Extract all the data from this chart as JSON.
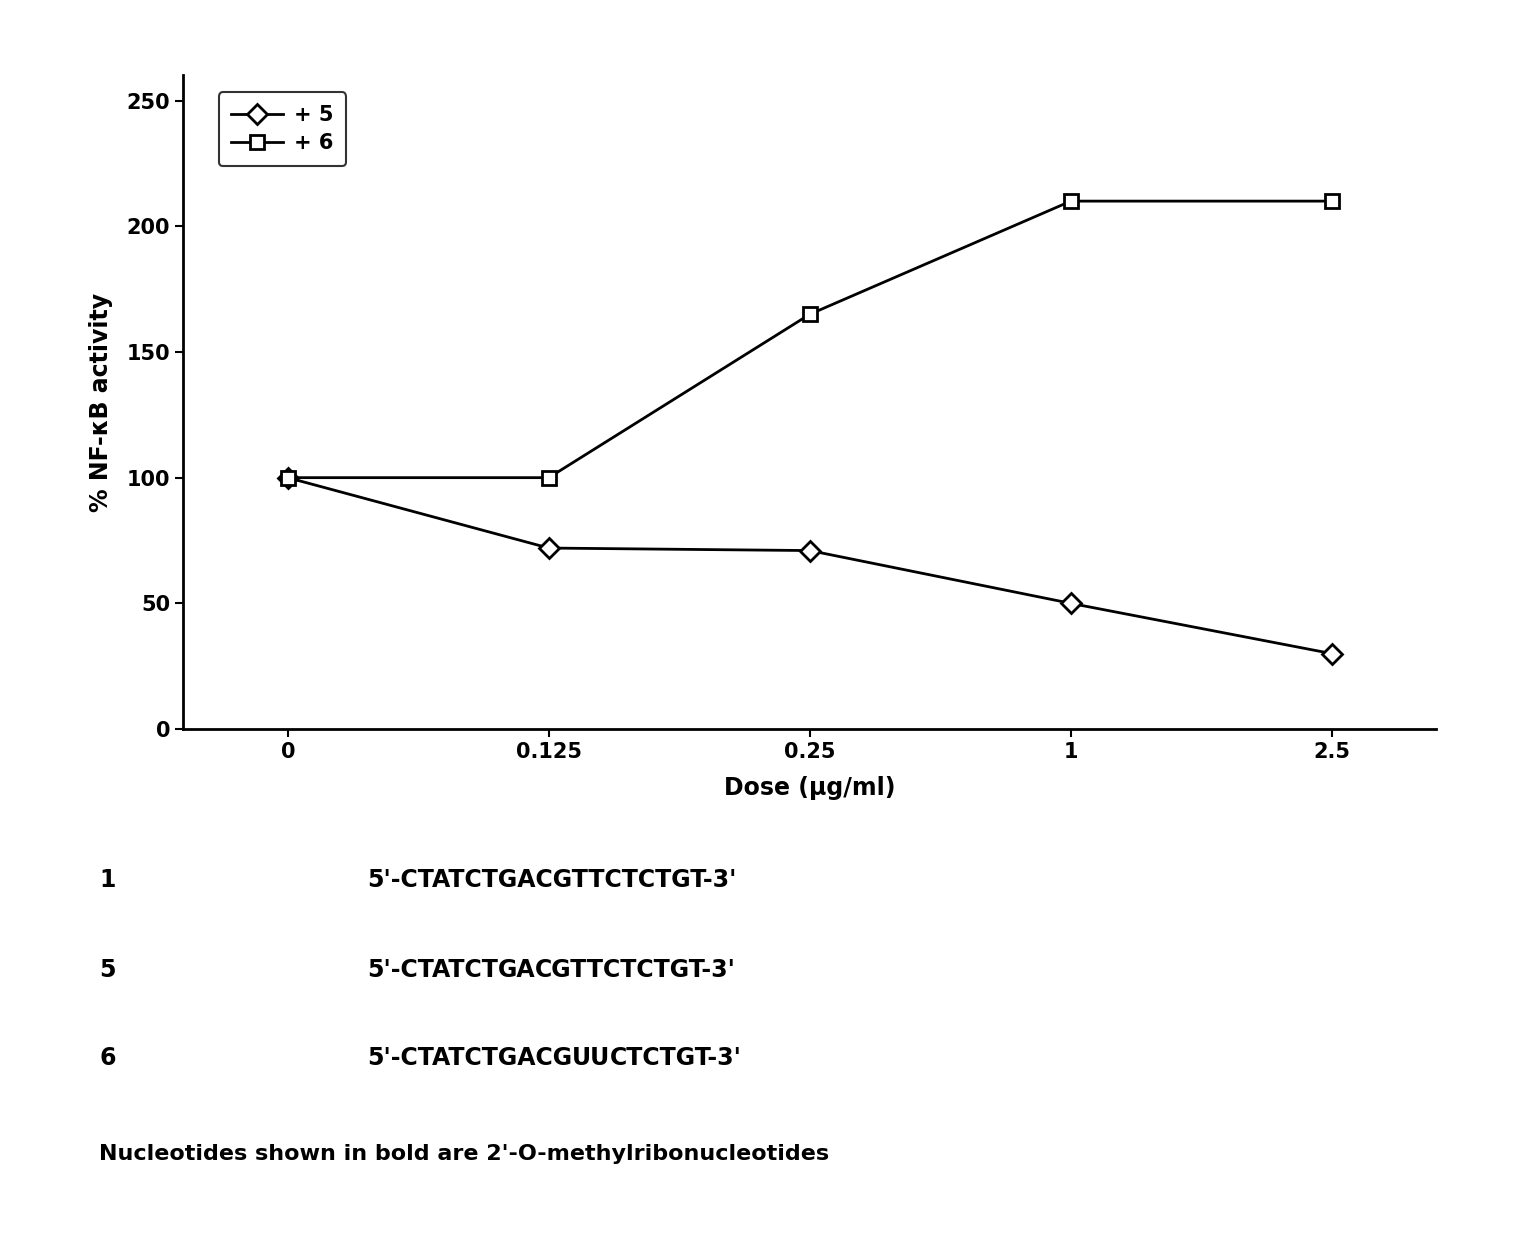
{
  "series5": {
    "x_idx": [
      0,
      1,
      2,
      3,
      4
    ],
    "y": [
      100,
      72,
      71,
      50,
      30
    ],
    "label": "+ 5",
    "marker": "D",
    "color": "#000000",
    "linewidth": 2.0,
    "markersize": 10,
    "markerfacecolor": "white",
    "markeredgewidth": 2.0
  },
  "series6": {
    "x_idx": [
      0,
      1,
      2,
      3,
      4
    ],
    "y": [
      100,
      100,
      165,
      210,
      210
    ],
    "label": "+ 6",
    "marker": "s",
    "color": "#000000",
    "linewidth": 2.0,
    "markersize": 10,
    "markerfacecolor": "white",
    "markeredgewidth": 2.0
  },
  "xlabel": "Dose (μg/ml)",
  "ylabel": "% NF-κB activity",
  "xtick_labels": [
    "0",
    "0.125",
    "0.25",
    "1",
    "2.5"
  ],
  "xlim": [
    -0.4,
    4.4
  ],
  "ylim": [
    0,
    260
  ],
  "yticks": [
    0,
    50,
    100,
    150,
    200,
    250
  ],
  "background_color": "#ffffff",
  "footnote": "Nucleotides shown in bold are 2'-O-methylribonucleotides"
}
